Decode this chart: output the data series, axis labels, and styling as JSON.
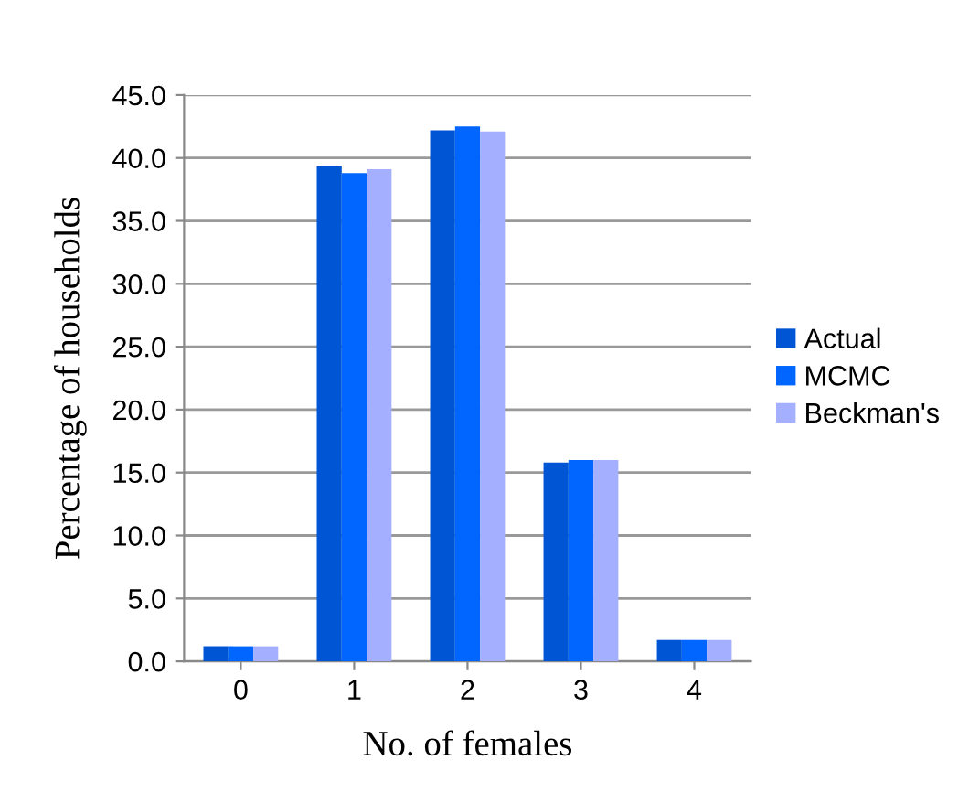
{
  "chart_data": {
    "type": "bar",
    "xlabel": "No. of females",
    "ylabel": "Percentage of households",
    "categories": [
      "0",
      "1",
      "2",
      "3",
      "4"
    ],
    "series": [
      {
        "name": "Actual",
        "color": "#0055d4",
        "values": [
          1.2,
          39.4,
          42.2,
          15.8,
          1.7
        ]
      },
      {
        "name": "MCMC",
        "color": "#0066ff",
        "values": [
          1.2,
          38.8,
          42.5,
          16.0,
          1.7
        ]
      },
      {
        "name": "Beckman's",
        "color": "#a4b0ff",
        "values": [
          1.2,
          39.1,
          42.1,
          16.0,
          1.7
        ]
      }
    ],
    "ylim": [
      0,
      45
    ],
    "yticks": [
      {
        "value": 0,
        "label": "0.0"
      },
      {
        "value": 5,
        "label": "5.0"
      },
      {
        "value": 10,
        "label": "10.0"
      },
      {
        "value": 15,
        "label": "15.0"
      },
      {
        "value": 20,
        "label": "20.0"
      },
      {
        "value": 25,
        "label": "25.0"
      },
      {
        "value": 30,
        "label": "30.0"
      },
      {
        "value": 35,
        "label": "35.0"
      },
      {
        "value": 40,
        "label": "40.0"
      },
      {
        "value": 45,
        "label": "45.0"
      }
    ],
    "grid": "y",
    "legend": "right"
  }
}
